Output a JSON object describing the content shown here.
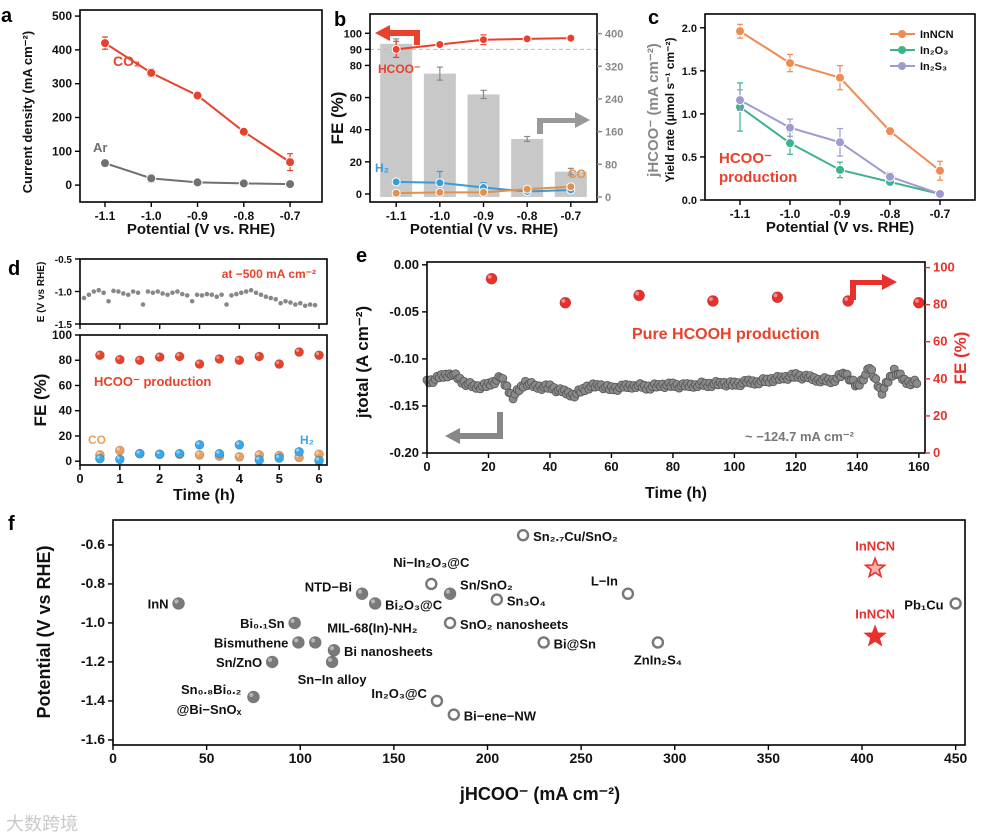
{
  "watermark": "大数跨境",
  "chart_data": [
    {
      "panel": "a",
      "type": "line",
      "xlabel": "Potential (V vs. RHE)",
      "ylabel": "Current density (mA cm⁻²)",
      "xlim": [
        -1.154,
        -0.631
      ],
      "ylim": [
        -50,
        518
      ],
      "xticks": [
        -1.1,
        -1.0,
        -0.9,
        -0.8,
        -0.7
      ],
      "xticklabels": [
        "-1.1",
        "-1.0",
        "-0.9",
        "-0.8",
        "-0.7"
      ],
      "yticks": [
        0,
        100,
        200,
        300,
        400,
        500
      ],
      "yticklabels": [
        "0",
        "100",
        "200",
        "300",
        "400",
        "500"
      ],
      "x": [
        -1.1,
        -1.0,
        -0.9,
        -0.8,
        -0.7
      ],
      "series": [
        {
          "name": "CO₂",
          "color": "#E8412C",
          "values": [
            420,
            332,
            265,
            158,
            68
          ],
          "err": [
            18,
            12,
            6,
            6,
            25
          ]
        },
        {
          "name": "Ar",
          "color": "#707070",
          "values": [
            65,
            20,
            8,
            5,
            3
          ],
          "err": [
            4,
            12,
            4,
            3,
            2
          ]
        }
      ]
    },
    {
      "panel": "b",
      "type": "bar+line",
      "xlabel": "Potential (V vs. RHE)",
      "ylabel": "FE (%)",
      "ylabel_right": "jHCOO⁻ (mA cm⁻²)",
      "xlim": [
        -1.16,
        -0.64
      ],
      "ylim": [
        -5,
        112
      ],
      "ylim_right": [
        -12.4,
        448
      ],
      "xticks": [
        -1.1,
        -1.0,
        -0.9,
        -0.8,
        -0.7
      ],
      "xticklabels": [
        "-1.1",
        "-1.0",
        "-0.9",
        "-0.8",
        "-0.7"
      ],
      "yticks": [
        0,
        20,
        40,
        60,
        80,
        90,
        100
      ],
      "yticklabels": [
        "0",
        "20",
        "40",
        "60",
        "80",
        "90",
        "100"
      ],
      "yticks_right": [
        0,
        80,
        160,
        240,
        320,
        400
      ],
      "yticklabels_right": [
        "0",
        "80",
        "160",
        "240",
        "320",
        "400"
      ],
      "x": [
        -1.1,
        -1.0,
        -0.9,
        -0.8,
        -0.7
      ],
      "bars": {
        "name": "jHCOO⁻",
        "color": "#C8C8C8",
        "values": [
          375,
          302,
          251,
          142,
          62
        ],
        "err": [
          12,
          16,
          10,
          6,
          8
        ]
      },
      "reference_line": 90,
      "series": [
        {
          "name": "HCOO⁻",
          "color": "#E8412C",
          "values": [
            90,
            93,
            96,
            96.5,
            97
          ],
          "err": [
            5,
            1,
            3,
            1.5,
            1
          ]
        },
        {
          "name": "H₂",
          "color": "#3A9BD9",
          "values": [
            7.5,
            7,
            4,
            1.5,
            2.5
          ],
          "err": [
            1.5,
            7,
            3,
            1,
            1
          ]
        },
        {
          "name": "CO",
          "color": "#E0914E",
          "values": [
            0.5,
            1,
            1,
            3,
            4.5
          ],
          "err": [
            0.3,
            0.5,
            0.5,
            1,
            1
          ]
        }
      ]
    },
    {
      "panel": "c",
      "type": "line",
      "xlabel": "Potential (V vs. RHE)",
      "ylabel": "Yield rate (μmol s⁻¹ cm⁻²)",
      "xlim": [
        -1.17,
        -0.63
      ],
      "ylim": [
        0,
        2.16
      ],
      "xticks": [
        -1.1,
        -1.0,
        -0.9,
        -0.8,
        -0.7
      ],
      "xticklabels": [
        "-1.1",
        "-1.0",
        "-0.9",
        "-0.8",
        "-0.7"
      ],
      "yticks": [
        0,
        0.5,
        1.0,
        1.5,
        2.0
      ],
      "yticklabels": [
        "0.0",
        "0.5",
        "1.0",
        "1.5",
        "2.0"
      ],
      "x": [
        -1.1,
        -1.0,
        -0.9,
        -0.8,
        -0.7
      ],
      "legend": "top-right",
      "annotation": [
        "HCOO⁻",
        "production"
      ],
      "series": [
        {
          "name": "InNCN",
          "color": "#F08A50",
          "values": [
            1.96,
            1.59,
            1.42,
            0.8,
            0.34
          ],
          "err": [
            0.08,
            0.1,
            0.14,
            0.03,
            0.11
          ]
        },
        {
          "name": "In₂O₃",
          "color": "#3CB38A",
          "values": [
            1.08,
            0.66,
            0.35,
            0.21,
            0.07
          ],
          "err": [
            0.28,
            0.13,
            0.09,
            0.04,
            0.02
          ]
        },
        {
          "name": "In₂S₃",
          "color": "#9D9BD0",
          "values": [
            1.16,
            0.84,
            0.67,
            0.27,
            0.07
          ],
          "err": [
            0.12,
            0.1,
            0.16,
            0.05,
            0.02
          ]
        }
      ]
    },
    {
      "panel": "d",
      "type": "scatter",
      "xlabel": "Time (h)",
      "xlim": [
        0,
        6.2
      ],
      "xticks": [
        0,
        1,
        2,
        3,
        4,
        5,
        6
      ],
      "xticklabels": [
        "0",
        "1",
        "2",
        "3",
        "4",
        "5",
        "6"
      ],
      "top": {
        "ylabel": "E (V vs RHE)",
        "ylim": [
          -1.5,
          -0.5
        ],
        "yticks": [
          -0.5,
          -1.0,
          -1.5
        ],
        "yticklabels": [
          "-0.5",
          "-1.0",
          "-1.5"
        ],
        "annotation": "at −500 mA cm⁻²",
        "t_start": 0.1,
        "t_step": 0.1234,
        "values": [
          -1.1,
          -1.05,
          -1.0,
          -0.98,
          -1.02,
          -1.15,
          -0.99,
          -1.0,
          -1.03,
          -1.05,
          -1.0,
          -1.02,
          -1.2,
          -1.0,
          -1.02,
          -1.0,
          -1.03,
          -1.05,
          -1.02,
          -1.0,
          -1.04,
          -1.06,
          -1.15,
          -1.05,
          -1.06,
          -1.04,
          -1.05,
          -1.08,
          -1.05,
          -1.2,
          -1.06,
          -1.04,
          -1.02,
          -1.0,
          -0.98,
          -1.02,
          -1.05,
          -1.08,
          -1.1,
          -1.12,
          -1.18,
          -1.15,
          -1.17,
          -1.2,
          -1.18,
          -1.22,
          -1.2,
          -1.21
        ]
      },
      "bottom": {
        "ylabel": "FE (%)",
        "ylim": [
          -3,
          100
        ],
        "yticks": [
          0,
          20,
          40,
          60,
          80,
          100
        ],
        "yticklabels": [
          "0",
          "20",
          "40",
          "60",
          "80",
          "100"
        ],
        "annotation": "HCOO⁻ production",
        "x": [
          0.5,
          1,
          1.5,
          2,
          2.5,
          3,
          3.5,
          4,
          4.5,
          5,
          5.5,
          6
        ],
        "series": [
          {
            "name": "HCOO⁻",
            "color": "#E8412C",
            "values": [
              84,
              80.5,
              80,
              82.5,
              83,
              77,
              81,
              80,
              83,
              77,
              86.5,
              84
            ]
          },
          {
            "name": "CO",
            "color": "#E8A060",
            "values": [
              5,
              8.5,
              6,
              5.5,
              5.5,
              5,
              4,
              3.5,
              5,
              4.5,
              3,
              5.5
            ]
          },
          {
            "name": "H₂",
            "color": "#3AA8E8",
            "values": [
              2,
              1.5,
              6,
              5.5,
              6,
              13,
              6,
              13,
              1,
              2.5,
              7.5,
              0.5
            ]
          }
        ]
      }
    },
    {
      "panel": "e",
      "type": "scatter",
      "xlabel": "Time (h)",
      "ylabel": "jtotal (A cm⁻²)",
      "ylabel_right": "FE (%)",
      "xlim": [
        0,
        162
      ],
      "ylim": [
        -0.2,
        0.003
      ],
      "ylim_right": [
        0,
        103
      ],
      "xticks": [
        0,
        20,
        40,
        60,
        80,
        100,
        120,
        140,
        160
      ],
      "xticklabels": [
        "0",
        "20",
        "40",
        "60",
        "80",
        "100",
        "120",
        "140",
        "160"
      ],
      "yticks": [
        0,
        -0.05,
        -0.1,
        -0.15,
        -0.2
      ],
      "yticklabels": [
        "0.00",
        "-0.05",
        "-0.10",
        "-0.15",
        "-0.20"
      ],
      "yticks_right": [
        0,
        20,
        40,
        60,
        80,
        100
      ],
      "yticklabels_right": [
        "0",
        "20",
        "40",
        "60",
        "80",
        "100"
      ],
      "annotation": "Pure HCOOH production",
      "annotation2": "~ −124.7 mA cm⁻²",
      "j_t_step": 4,
      "j_values": [
        -0.125,
        -0.12,
        -0.115,
        -0.125,
        -0.13,
        -0.128,
        -0.12,
        -0.14,
        -0.125,
        -0.13,
        -0.13,
        -0.135,
        -0.138,
        -0.13,
        -0.128,
        -0.132,
        -0.13,
        -0.128,
        -0.13,
        -0.128,
        -0.128,
        -0.129,
        -0.127,
        -0.127,
        -0.126,
        -0.127,
        -0.125,
        -0.124,
        -0.122,
        -0.12,
        -0.118,
        -0.12,
        -0.122,
        -0.123,
        -0.115,
        -0.13,
        -0.11,
        -0.135,
        -0.112,
        -0.125,
        -0.125
      ],
      "fe": {
        "color": "#E8312C",
        "x": [
          21,
          45,
          69,
          93,
          114,
          137,
          160
        ],
        "values": [
          94,
          81,
          85,
          82,
          84,
          82,
          81
        ]
      }
    },
    {
      "panel": "f",
      "type": "scatter",
      "xlabel": "jHCOO⁻ (mA cm⁻²)",
      "ylabel": "Potential (V vs RHE)",
      "xlim": [
        0,
        455
      ],
      "ylim": [
        -1.626,
        -0.472
      ],
      "xticks": [
        0,
        50,
        100,
        150,
        200,
        250,
        300,
        350,
        400,
        450
      ],
      "xticklabels": [
        "0",
        "50",
        "100",
        "150",
        "200",
        "250",
        "300",
        "350",
        "400",
        "450"
      ],
      "yticks": [
        -0.6,
        -0.8,
        -1.0,
        -1.2,
        -1.4,
        -1.6
      ],
      "yticklabels": [
        "-0.6",
        "-0.8",
        "-1.0",
        "-1.2",
        "-1.4",
        "-1.6"
      ],
      "points": [
        {
          "label": "InN",
          "x": 35,
          "y": -0.9,
          "style": "filled"
        },
        {
          "label": "NTD−Bi",
          "x": 133,
          "y": -0.85,
          "style": "filled"
        },
        {
          "label": "Bi₂O₃@C",
          "x": 140,
          "y": -0.9,
          "style": "filled"
        },
        {
          "label": "Bi₀.₁Sn",
          "x": 97,
          "y": -1.0,
          "style": "filled"
        },
        {
          "label": "Bismuthene",
          "x": 99,
          "y": -1.1,
          "style": "filled"
        },
        {
          "label": "MIL-68(In)-NH₂",
          "x": 108,
          "y": -1.1,
          "style": "filled"
        },
        {
          "label": "Bi nanosheets",
          "x": 118,
          "y": -1.14,
          "style": "filled"
        },
        {
          "label": "Sn/ZnO",
          "x": 85,
          "y": -1.2,
          "style": "filled"
        },
        {
          "label": "Sn−In alloy",
          "x": 117,
          "y": -1.2,
          "style": "filled"
        },
        {
          "label": "Sn₀.₈Bi₀.₂",
          "label2": "@Bi−SnOₓ",
          "x": 75,
          "y": -1.38,
          "style": "filled"
        },
        {
          "label": "Ni−In₂O₃@C",
          "x": 170,
          "y": -0.8,
          "style": "open"
        },
        {
          "label": "Sn/SnO₂",
          "x": 180,
          "y": -0.85,
          "style": "filled"
        },
        {
          "label": "Sn₂.₇Cu/SnO₂",
          "x": 219,
          "y": -0.55,
          "style": "open"
        },
        {
          "label": "Sn₃O₄",
          "x": 205,
          "y": -0.88,
          "style": "open"
        },
        {
          "label": "SnO₂ nanosheets",
          "x": 180,
          "y": -1.0,
          "style": "open"
        },
        {
          "label": "Bi@Sn",
          "x": 230,
          "y": -1.1,
          "style": "open"
        },
        {
          "label": "In₂O₃@C",
          "x": 173,
          "y": -1.4,
          "style": "open"
        },
        {
          "label": "Bi−ene−NW",
          "x": 182,
          "y": -1.47,
          "style": "open"
        },
        {
          "label": "L−In",
          "x": 275,
          "y": -0.85,
          "style": "open"
        },
        {
          "label": "ZnIn₂S₄",
          "x": 291,
          "y": -1.1,
          "style": "open"
        },
        {
          "label": "Pb₁Cu",
          "x": 450,
          "y": -0.9,
          "style": "open"
        },
        {
          "label": "InNCN",
          "x": 407,
          "y": -0.72,
          "style": "star-open"
        },
        {
          "label": "InNCN",
          "x": 407,
          "y": -1.07,
          "style": "star-filled"
        }
      ]
    }
  ]
}
